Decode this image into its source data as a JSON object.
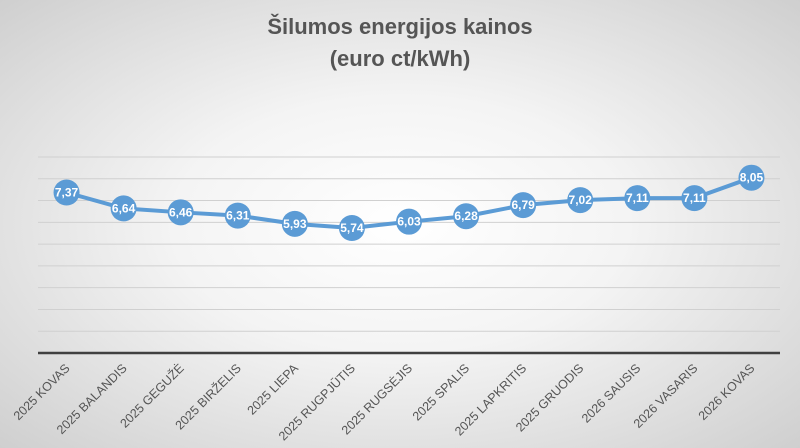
{
  "chart_data": {
    "type": "line",
    "title": "Šilumos energijos kainos",
    "subtitle": "(euro ct/kWh)",
    "categories": [
      "2025 KOVAS",
      "2025 BALANDIS",
      "2025 GEGUŽĖ",
      "2025 BIRŽELIS",
      "2025 LIEPA",
      "2025 RUGPJŪTIS",
      "2025 RUGSĖJIS",
      "2025 SPALIS",
      "2025 LAPKRITIS",
      "2025 GRUODIS",
      "2026 SAUSIS",
      "2026 VASARIS",
      "2026 KOVAS"
    ],
    "values": [
      7.37,
      6.64,
      6.46,
      6.31,
      5.93,
      5.74,
      6.03,
      6.28,
      6.79,
      7.02,
      7.11,
      7.11,
      8.05
    ],
    "data_labels": [
      "7,37",
      "6,64",
      "6,46",
      "6,31",
      "5,93",
      "5,74",
      "6,03",
      "6,28",
      "6,79",
      "7,02",
      "7,11",
      "7,11",
      "8,05"
    ],
    "ylim": [
      0,
      9
    ],
    "grid": true,
    "y_tick_labels_shown": false,
    "line_color": "#5b9bd5"
  }
}
